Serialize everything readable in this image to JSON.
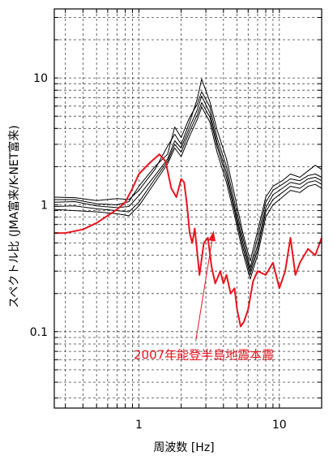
{
  "chart_data": {
    "type": "line",
    "title": "",
    "xlabel": "周波数 [Hz]",
    "ylabel": "スペクトル比 (JMA富来/K-NET富来)",
    "x_scale": "log",
    "y_scale": "log",
    "xlim": [
      0.25,
      20
    ],
    "ylim": [
      0.025,
      35
    ],
    "grid": true,
    "x_ticks": [
      {
        "value": 1,
        "label": "1"
      },
      {
        "value": 10,
        "label": "10"
      }
    ],
    "y_ticks": [
      {
        "value": 0.1,
        "label": "0.1"
      },
      {
        "value": 1,
        "label": "1"
      },
      {
        "value": 10,
        "label": "10"
      }
    ],
    "colors": {
      "mainshock": "#e8141e",
      "other": "#000000"
    },
    "annotation": {
      "text": "2007年能登半島地震本震",
      "target": {
        "x": 3.4,
        "y": 0.62
      },
      "text_anchor": {
        "x": 2.9,
        "y": 0.061
      }
    },
    "series": [
      {
        "color": "#000000",
        "points": [
          [
            0.25,
            1.1
          ],
          [
            0.35,
            1.1
          ],
          [
            0.5,
            1.02
          ],
          [
            0.7,
            1.0
          ],
          [
            0.85,
            1.06
          ],
          [
            1.0,
            1.4
          ],
          [
            1.3,
            2.0
          ],
          [
            1.6,
            2.5
          ],
          [
            1.8,
            4.1
          ],
          [
            2.0,
            3.4
          ],
          [
            2.3,
            4.9
          ],
          [
            2.6,
            6.2
          ],
          [
            2.8,
            7.8
          ],
          [
            3.2,
            5.9
          ],
          [
            3.6,
            3.4
          ],
          [
            4.2,
            2.0
          ],
          [
            4.8,
            1.05
          ],
          [
            5.5,
            0.55
          ],
          [
            6.2,
            0.32
          ],
          [
            7.0,
            0.55
          ],
          [
            8.0,
            1.05
          ],
          [
            9.0,
            1.3
          ],
          [
            10.5,
            1.45
          ],
          [
            12.0,
            1.6
          ],
          [
            14.0,
            1.55
          ],
          [
            16.0,
            1.7
          ],
          [
            18.0,
            1.75
          ],
          [
            20.0,
            1.65
          ]
        ]
      },
      {
        "color": "#000000",
        "points": [
          [
            0.25,
            1.15
          ],
          [
            0.35,
            1.14
          ],
          [
            0.5,
            1.08
          ],
          [
            0.7,
            1.12
          ],
          [
            0.85,
            1.1
          ],
          [
            1.0,
            1.3
          ],
          [
            1.3,
            1.9
          ],
          [
            1.6,
            2.9
          ],
          [
            1.8,
            3.6
          ],
          [
            2.0,
            3.0
          ],
          [
            2.3,
            4.5
          ],
          [
            2.6,
            6.8
          ],
          [
            2.8,
            9.8
          ],
          [
            3.2,
            6.5
          ],
          [
            3.6,
            3.9
          ],
          [
            4.2,
            2.3
          ],
          [
            4.8,
            1.2
          ],
          [
            5.5,
            0.6
          ],
          [
            6.2,
            0.36
          ],
          [
            7.0,
            0.62
          ],
          [
            8.0,
            1.15
          ],
          [
            9.0,
            1.4
          ],
          [
            10.5,
            1.55
          ],
          [
            12.0,
            1.75
          ],
          [
            14.0,
            1.65
          ],
          [
            16.0,
            1.85
          ],
          [
            18.0,
            2.05
          ],
          [
            20.0,
            1.9
          ]
        ]
      },
      {
        "color": "#000000",
        "points": [
          [
            0.25,
            1.05
          ],
          [
            0.35,
            1.06
          ],
          [
            0.5,
            0.98
          ],
          [
            0.7,
            0.95
          ],
          [
            0.85,
            0.97
          ],
          [
            1.0,
            1.18
          ],
          [
            1.3,
            1.7
          ],
          [
            1.6,
            2.3
          ],
          [
            1.8,
            3.2
          ],
          [
            2.0,
            2.8
          ],
          [
            2.3,
            4.1
          ],
          [
            2.6,
            5.6
          ],
          [
            2.8,
            7.2
          ],
          [
            3.2,
            5.3
          ],
          [
            3.6,
            3.1
          ],
          [
            4.2,
            1.8
          ],
          [
            4.8,
            0.95
          ],
          [
            5.5,
            0.5
          ],
          [
            6.2,
            0.3
          ],
          [
            7.0,
            0.48
          ],
          [
            8.0,
            0.95
          ],
          [
            9.0,
            1.2
          ],
          [
            10.5,
            1.35
          ],
          [
            12.0,
            1.5
          ],
          [
            14.0,
            1.45
          ],
          [
            16.0,
            1.6
          ],
          [
            18.0,
            1.65
          ],
          [
            20.0,
            1.55
          ]
        ]
      },
      {
        "color": "#000000",
        "points": [
          [
            0.25,
            0.97
          ],
          [
            0.35,
            0.98
          ],
          [
            0.5,
            0.93
          ],
          [
            0.7,
            0.9
          ],
          [
            0.85,
            0.88
          ],
          [
            1.0,
            1.05
          ],
          [
            1.3,
            1.6
          ],
          [
            1.6,
            2.2
          ],
          [
            1.8,
            3.0
          ],
          [
            2.0,
            2.6
          ],
          [
            2.3,
            3.8
          ],
          [
            2.6,
            5.1
          ],
          [
            2.8,
            6.4
          ],
          [
            3.2,
            4.9
          ],
          [
            3.6,
            2.9
          ],
          [
            4.2,
            1.65
          ],
          [
            4.8,
            0.9
          ],
          [
            5.5,
            0.46
          ],
          [
            6.2,
            0.28
          ],
          [
            7.0,
            0.44
          ],
          [
            8.0,
            0.88
          ],
          [
            9.0,
            1.1
          ],
          [
            10.5,
            1.25
          ],
          [
            12.0,
            1.4
          ],
          [
            14.0,
            1.35
          ],
          [
            16.0,
            1.5
          ],
          [
            18.0,
            1.55
          ],
          [
            20.0,
            1.45
          ]
        ]
      },
      {
        "color": "#000000",
        "points": [
          [
            0.25,
            0.92
          ],
          [
            0.35,
            0.9
          ],
          [
            0.5,
            0.88
          ],
          [
            0.7,
            0.85
          ],
          [
            0.85,
            0.82
          ],
          [
            1.0,
            0.98
          ],
          [
            1.3,
            1.5
          ],
          [
            1.6,
            2.1
          ],
          [
            1.8,
            2.8
          ],
          [
            2.0,
            2.4
          ],
          [
            2.3,
            3.5
          ],
          [
            2.6,
            4.7
          ],
          [
            2.8,
            5.9
          ],
          [
            3.2,
            4.5
          ],
          [
            3.6,
            2.6
          ],
          [
            4.2,
            1.5
          ],
          [
            4.8,
            0.82
          ],
          [
            5.5,
            0.42
          ],
          [
            6.2,
            0.26
          ],
          [
            7.0,
            0.4
          ],
          [
            8.0,
            0.8
          ],
          [
            9.0,
            1.0
          ],
          [
            10.5,
            1.15
          ],
          [
            12.0,
            1.3
          ],
          [
            14.0,
            1.25
          ],
          [
            16.0,
            1.4
          ],
          [
            18.0,
            1.45
          ],
          [
            20.0,
            1.35
          ]
        ]
      },
      {
        "name": "2007年能登半島地震本震",
        "color": "#e8141e",
        "points": [
          [
            0.25,
            0.6
          ],
          [
            0.3,
            0.6
          ],
          [
            0.4,
            0.64
          ],
          [
            0.5,
            0.72
          ],
          [
            0.6,
            0.82
          ],
          [
            0.7,
            0.92
          ],
          [
            0.8,
            1.05
          ],
          [
            0.9,
            1.35
          ],
          [
            1.0,
            1.75
          ],
          [
            1.2,
            2.15
          ],
          [
            1.4,
            2.5
          ],
          [
            1.55,
            2.2
          ],
          [
            1.7,
            1.35
          ],
          [
            1.85,
            1.15
          ],
          [
            2.0,
            1.6
          ],
          [
            2.1,
            1.5
          ],
          [
            2.2,
            1.0
          ],
          [
            2.3,
            0.6
          ],
          [
            2.4,
            0.5
          ],
          [
            2.5,
            0.65
          ],
          [
            2.7,
            0.28
          ],
          [
            2.9,
            0.5
          ],
          [
            3.1,
            0.55
          ],
          [
            3.3,
            0.32
          ],
          [
            3.5,
            0.24
          ],
          [
            3.8,
            0.3
          ],
          [
            4.0,
            0.24
          ],
          [
            4.2,
            0.28
          ],
          [
            4.5,
            0.2
          ],
          [
            4.8,
            0.22
          ],
          [
            5.0,
            0.15
          ],
          [
            5.3,
            0.11
          ],
          [
            5.6,
            0.12
          ],
          [
            6.0,
            0.15
          ],
          [
            6.5,
            0.25
          ],
          [
            7.0,
            0.3
          ],
          [
            8.0,
            0.28
          ],
          [
            9.0,
            0.35
          ],
          [
            10.0,
            0.22
          ],
          [
            11.0,
            0.3
          ],
          [
            12.0,
            0.55
          ],
          [
            13.0,
            0.28
          ],
          [
            14.0,
            0.35
          ],
          [
            16.0,
            0.45
          ],
          [
            18.0,
            0.4
          ],
          [
            20.0,
            0.55
          ]
        ]
      }
    ]
  }
}
